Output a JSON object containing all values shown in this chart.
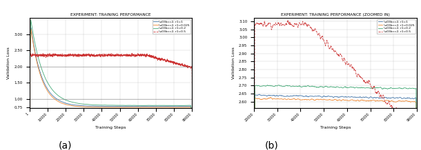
{
  "subplot_a": {
    "title": "EXPERIMENT: TRAINING PERFORMANCE",
    "xlabel": "Training Steps",
    "ylabel": "Validation Loss",
    "xlim": [
      1,
      90000
    ],
    "ylim": [
      0.72,
      3.5
    ],
    "yticks": [
      0.75,
      1.0,
      1.5,
      2.0,
      2.5,
      3.0
    ],
    "xticks": [
      1,
      10000,
      20000,
      30000,
      40000,
      50000,
      60000,
      70000,
      80000,
      90000
    ],
    "xticklabels": [
      "1",
      "10000",
      "20000",
      "30000",
      "40000",
      "50000",
      "60000",
      "70000",
      "80000",
      "90000"
    ],
    "hlines": [
      1.0,
      2.0
    ]
  },
  "subplot_b": {
    "title": "EXPERIMENT: TRAINING PERFORMANCE (ZOOMED IN)",
    "xlabel": "Training Steps",
    "ylabel": "Validation Loss",
    "xlim": [
      20000,
      90000
    ],
    "ylim": [
      2.56,
      3.12
    ],
    "yticks": [
      2.6,
      2.65,
      2.7,
      2.75,
      2.8,
      2.85,
      2.9,
      2.95,
      3.0,
      3.05,
      3.1
    ],
    "xticks": [
      20000,
      30000,
      40000,
      50000,
      60000,
      70000,
      80000,
      90000
    ],
    "xticklabels": [
      "20000",
      "30000",
      "40000",
      "50000",
      "60000",
      "70000",
      "80000",
      "90000"
    ]
  },
  "legend_labels": [
    "\\u03bc=2, r1=1",
    "\\u03bc=2, r1=0.025",
    "\\u03bc=2, r1=0.2",
    "\\u03bc=2, r1=0.5"
  ],
  "colors": [
    "#4477aa",
    "#ee8833",
    "#44aa77",
    "#cc3333"
  ],
  "label_a": "(a)",
  "label_b": "(b)"
}
